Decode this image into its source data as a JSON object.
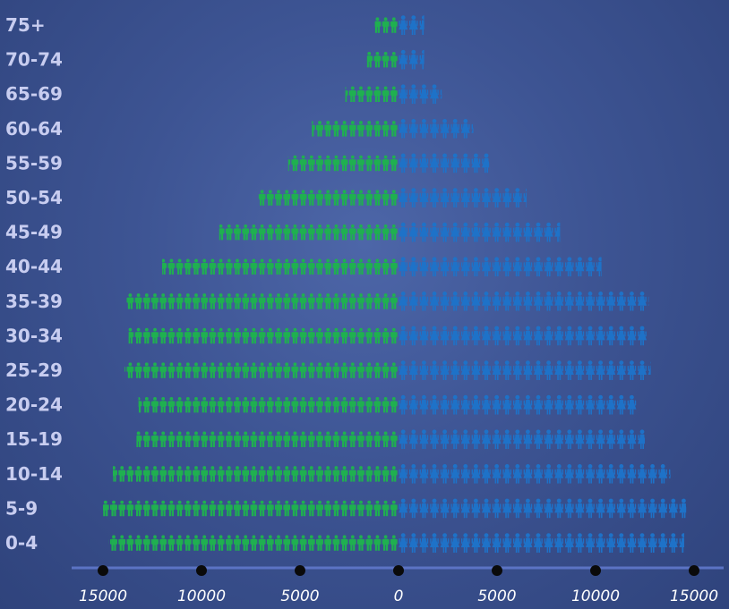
{
  "chart_data": {
    "type": "bar",
    "orientation": "horizontal",
    "categories": [
      "75+",
      "70-74",
      "65-69",
      "60-64",
      "55-59",
      "50-54",
      "45-49",
      "40-44",
      "35-39",
      "30-34",
      "25-29",
      "20-24",
      "15-19",
      "10-14",
      "5-9",
      "0-4"
    ],
    "series": [
      {
        "color": "#1fb050",
        "side": "left",
        "values": [
          1200,
          1600,
          2700,
          4400,
          5600,
          7100,
          9100,
          12000,
          13800,
          13700,
          13900,
          13200,
          13300,
          14500,
          15000,
          14700
        ]
      },
      {
        "color": "#1e72c8",
        "side": "right",
        "values": [
          1300,
          1300,
          2200,
          3800,
          4600,
          6500,
          8200,
          10300,
          12700,
          12600,
          12800,
          12100,
          12500,
          13800,
          14600,
          14500
        ]
      }
    ],
    "x_tick_labels": [
      "15000",
      "10000",
      "5000",
      "0",
      "5000",
      "10000",
      "15000"
    ],
    "x_tick_values": [
      -15000,
      -10000,
      -5000,
      0,
      5000,
      10000,
      15000
    ],
    "xlim": [
      -15000,
      15000
    ],
    "grid": false,
    "icon_green": "man-icon",
    "icon_blue": "woman-icon"
  },
  "colors": {
    "axis_line": "#5b73c4",
    "axis_dot": "#0a0a0a",
    "age_label": "#c8cdf0",
    "tick_label": "#ffffff"
  }
}
